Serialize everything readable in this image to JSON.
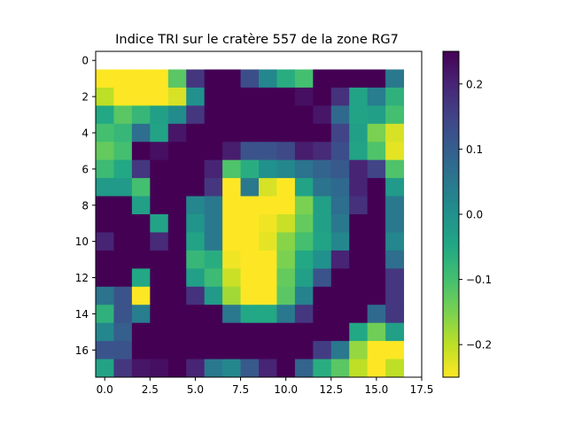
{
  "chart_data": {
    "type": "heatmap",
    "title": "Indice TRI sur le cratère 557 de la zone RG7",
    "xlabel": "",
    "ylabel": "",
    "x_ticks": [
      0.0,
      2.5,
      5.0,
      7.5,
      10.0,
      12.5,
      15.0,
      17.5
    ],
    "x_tick_labels": [
      "0.0",
      "2.5",
      "5.0",
      "7.5",
      "10.0",
      "12.5",
      "15.0",
      "17.5"
    ],
    "y_ticks": [
      0,
      2,
      4,
      6,
      8,
      10,
      12,
      14,
      16
    ],
    "y_tick_labels": [
      "0",
      "2",
      "4",
      "6",
      "8",
      "10",
      "12",
      "14",
      "16"
    ],
    "xlim": [
      -0.5,
      17.5
    ],
    "ylim": [
      -0.5,
      17.5
    ],
    "data_extent_rows": [
      0.5,
      17.5
    ],
    "data_extent_cols": [
      -0.5,
      16.5
    ],
    "colormap": "viridis_r",
    "vmin": -0.25,
    "vmax": 0.25,
    "colorbar_ticks": [
      0.2,
      0.1,
      0.0,
      -0.1,
      -0.2
    ],
    "colorbar_tick_labels": [
      "0.2",
      "0.1",
      "0.0",
      "−0.1",
      "−0.2"
    ],
    "grid": false,
    "values": [
      [
        -0.25,
        -0.25,
        -0.25,
        -0.25,
        -0.12,
        0.17,
        0.25,
        0.25,
        0.13,
        0.02,
        -0.06,
        -0.1,
        0.25,
        0.25,
        0.25,
        0.25,
        0.05
      ],
      [
        -0.2,
        -0.25,
        -0.25,
        -0.25,
        -0.22,
        0.0,
        0.25,
        0.25,
        0.25,
        0.25,
        0.25,
        0.23,
        0.25,
        0.18,
        -0.04,
        0.04,
        -0.07
      ],
      [
        -0.05,
        -0.12,
        -0.08,
        -0.03,
        0.01,
        0.17,
        0.25,
        0.25,
        0.25,
        0.25,
        0.25,
        0.25,
        0.22,
        0.08,
        -0.04,
        -0.03,
        -0.1
      ],
      [
        -0.1,
        -0.08,
        0.07,
        -0.04,
        0.22,
        0.25,
        0.25,
        0.25,
        0.25,
        0.25,
        0.25,
        0.25,
        0.25,
        0.15,
        -0.03,
        -0.15,
        -0.22
      ],
      [
        -0.13,
        -0.1,
        0.25,
        0.23,
        0.25,
        0.25,
        0.25,
        0.21,
        0.12,
        0.12,
        0.14,
        0.21,
        0.19,
        0.13,
        -0.04,
        -0.11,
        -0.23
      ],
      [
        -0.09,
        -0.05,
        0.17,
        0.25,
        0.25,
        0.25,
        0.2,
        -0.11,
        -0.06,
        0.0,
        0.02,
        0.06,
        0.09,
        0.11,
        0.2,
        0.15,
        -0.11
      ],
      [
        -0.02,
        -0.02,
        -0.1,
        0.25,
        0.25,
        0.25,
        0.17,
        -0.25,
        0.05,
        -0.22,
        -0.25,
        -0.04,
        0.06,
        0.08,
        0.2,
        0.25,
        -0.02
      ],
      [
        0.25,
        0.25,
        -0.03,
        0.25,
        0.25,
        0.02,
        0.05,
        -0.25,
        -0.25,
        -0.25,
        -0.25,
        -0.15,
        -0.03,
        0.07,
        0.18,
        0.25,
        0.05
      ],
      [
        0.25,
        0.25,
        0.25,
        -0.04,
        0.25,
        -0.01,
        0.05,
        -0.25,
        -0.25,
        -0.24,
        -0.21,
        -0.13,
        -0.03,
        0.05,
        0.25,
        0.25,
        0.05
      ],
      [
        0.2,
        0.25,
        0.25,
        0.19,
        0.25,
        -0.04,
        0.05,
        -0.25,
        -0.25,
        -0.23,
        -0.16,
        -0.1,
        -0.04,
        0.02,
        0.25,
        0.25,
        0.02
      ],
      [
        0.25,
        0.25,
        0.25,
        0.25,
        0.25,
        -0.08,
        -0.06,
        -0.24,
        -0.25,
        -0.25,
        -0.15,
        -0.05,
        0.0,
        0.2,
        0.25,
        0.25,
        0.07
      ],
      [
        0.25,
        0.25,
        -0.05,
        0.25,
        0.25,
        -0.03,
        -0.09,
        -0.21,
        -0.25,
        -0.25,
        -0.13,
        -0.03,
        0.12,
        0.25,
        0.25,
        0.25,
        0.17
      ],
      [
        0.06,
        0.12,
        -0.25,
        0.25,
        0.25,
        0.18,
        -0.02,
        -0.18,
        -0.25,
        -0.25,
        -0.12,
        0.03,
        0.25,
        0.25,
        0.25,
        0.25,
        0.17
      ],
      [
        -0.07,
        0.12,
        0.04,
        0.25,
        0.25,
        0.25,
        0.25,
        0.05,
        -0.05,
        -0.05,
        0.05,
        0.17,
        0.25,
        0.25,
        0.25,
        0.08,
        0.17
      ],
      [
        0.02,
        0.1,
        0.25,
        0.25,
        0.25,
        0.25,
        0.25,
        0.25,
        0.25,
        0.25,
        0.25,
        0.25,
        0.25,
        0.25,
        -0.05,
        -0.14,
        -0.03
      ],
      [
        0.12,
        0.12,
        0.25,
        0.25,
        0.25,
        0.25,
        0.25,
        0.25,
        0.25,
        0.25,
        0.25,
        0.25,
        0.16,
        0.05,
        -0.17,
        -0.25,
        -0.25
      ],
      [
        -0.04,
        0.17,
        0.22,
        0.23,
        0.25,
        0.2,
        0.05,
        0.02,
        0.11,
        0.2,
        0.25,
        0.09,
        -0.06,
        -0.12,
        -0.2,
        -0.25,
        -0.2
      ]
    ]
  }
}
